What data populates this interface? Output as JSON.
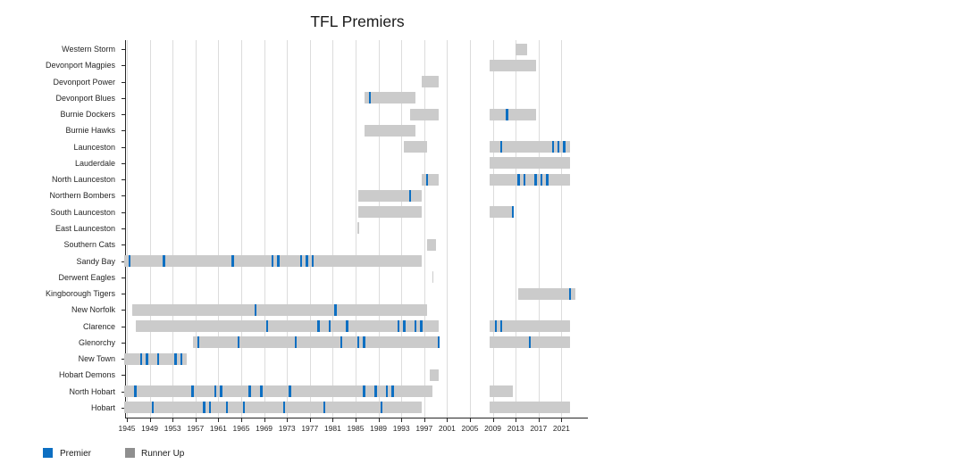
{
  "title": "TFL Premiers",
  "legend": {
    "premier_label": "Premier",
    "runner_up_label": "Runner Up"
  },
  "colors": {
    "premier_blue": "#0d6fc2",
    "runner_up_bar_gray": "#cbcbcb",
    "legend_gray": "#8f8f8f",
    "gridline": "#dcdcdc",
    "axis": "#262626"
  },
  "chart_data": {
    "type": "bar",
    "variant": "horizontal-gantt-timeline",
    "title": "TFL Premiers",
    "xlabel": "",
    "ylabel": "",
    "x_axis": {
      "min_year": 1945,
      "max_year": 2021,
      "tick_step": 4,
      "ticks": [
        1945,
        1949,
        1953,
        1957,
        1961,
        1965,
        1969,
        1973,
        1977,
        1981,
        1985,
        1989,
        1993,
        1997,
        2001,
        2005,
        2009,
        2013,
        2017,
        2021
      ]
    },
    "grid": "vertical-on",
    "legend_position": "bottom-left",
    "series_legend": [
      "Premier",
      "Runner Up"
    ],
    "teams": [
      {
        "name": "Western Storm",
        "runner_up_spans": [
          [
            2013.5,
            2014.5
          ]
        ],
        "premier_years": []
      },
      {
        "name": "Devonport Magpies",
        "runner_up_spans": [
          [
            2009,
            2016
          ]
        ],
        "premier_years": []
      },
      {
        "name": "Devonport Power",
        "runner_up_spans": [
          [
            1997,
            1999
          ]
        ],
        "premier_years": []
      },
      {
        "name": "Devonport Blues",
        "runner_up_spans": [
          [
            1987,
            1995
          ]
        ],
        "premier_years": [
          1987
        ]
      },
      {
        "name": "Burnie Dockers",
        "runner_up_spans": [
          [
            1995,
            1999
          ],
          [
            2009,
            2016
          ]
        ],
        "premier_years": [
          2011
        ]
      },
      {
        "name": "Burnie Hawks",
        "runner_up_spans": [
          [
            1987,
            1995
          ]
        ],
        "premier_years": []
      },
      {
        "name": "Launceston",
        "runner_up_spans": [
          [
            1994,
            1997
          ],
          [
            2009,
            2022
          ]
        ],
        "premier_years": [
          2010,
          2019,
          2020,
          2021
        ]
      },
      {
        "name": "Lauderdale",
        "runner_up_spans": [
          [
            2009,
            2022
          ]
        ],
        "premier_years": []
      },
      {
        "name": "North Launceston",
        "runner_up_spans": [
          [
            1997,
            1999
          ],
          [
            2009,
            2022
          ]
        ],
        "premier_years": [
          1997,
          2013,
          2014,
          2016,
          2017,
          2018
        ]
      },
      {
        "name": "Northern Bombers",
        "runner_up_spans": [
          [
            1986,
            1996
          ]
        ],
        "premier_years": [
          1994
        ]
      },
      {
        "name": "South Launceston",
        "runner_up_spans": [
          [
            1986,
            1996
          ],
          [
            2009,
            2012
          ]
        ],
        "premier_years": [
          2012
        ]
      },
      {
        "name": "East Launceston",
        "runner_up_spans": [
          [
            1985,
            1985
          ]
        ],
        "premier_years": []
      },
      {
        "name": "Southern Cats",
        "runner_up_spans": [
          [
            1998,
            1998.5
          ]
        ],
        "premier_years": []
      },
      {
        "name": "Sandy Bay",
        "runner_up_spans": [
          [
            1945,
            1996
          ]
        ],
        "premier_years": [
          1945,
          1951,
          1963,
          1970,
          1971,
          1975,
          1976,
          1977
        ]
      },
      {
        "name": "Derwent Eagles",
        "runner_up_spans": [
          [
            1998,
            1998
          ]
        ],
        "premier_years": []
      },
      {
        "name": "Kingborough Tigers",
        "runner_up_spans": [
          [
            2014,
            2023
          ]
        ],
        "premier_years": [
          2022
        ]
      },
      {
        "name": "New Norfolk",
        "runner_up_spans": [
          [
            1946.5,
            1997
          ]
        ],
        "premier_years": [
          1967,
          1981
        ]
      },
      {
        "name": "Clarence",
        "runner_up_spans": [
          [
            1947,
            1999
          ],
          [
            2009,
            2022
          ]
        ],
        "premier_years": [
          1969,
          1978,
          1980,
          1983,
          1992,
          1993,
          1995,
          1996,
          2009,
          2010
        ]
      },
      {
        "name": "Glenorchy",
        "runner_up_spans": [
          [
            1957,
            1999
          ],
          [
            2009,
            2022
          ]
        ],
        "premier_years": [
          1957,
          1964,
          1974,
          1982,
          1985,
          1986,
          1999,
          2015
        ]
      },
      {
        "name": "New Town",
        "runner_up_spans": [
          [
            1945,
            1955
          ]
        ],
        "premier_years": [
          1947,
          1948,
          1950,
          1953,
          1954
        ]
      },
      {
        "name": "Hobart Demons",
        "runner_up_spans": [
          [
            1998.5,
            1999
          ]
        ],
        "premier_years": []
      },
      {
        "name": "North Hobart",
        "runner_up_spans": [
          [
            1945,
            1998
          ],
          [
            2009,
            2012
          ]
        ],
        "premier_years": [
          1946,
          1956,
          1960,
          1961,
          1966,
          1968,
          1973,
          1986,
          1988,
          1990,
          1991
        ]
      },
      {
        "name": "Hobart",
        "runner_up_spans": [
          [
            1945,
            1996
          ],
          [
            2009,
            2022
          ]
        ],
        "premier_years": [
          1949,
          1958,
          1959,
          1962,
          1965,
          1972,
          1979,
          1989
        ]
      }
    ]
  }
}
